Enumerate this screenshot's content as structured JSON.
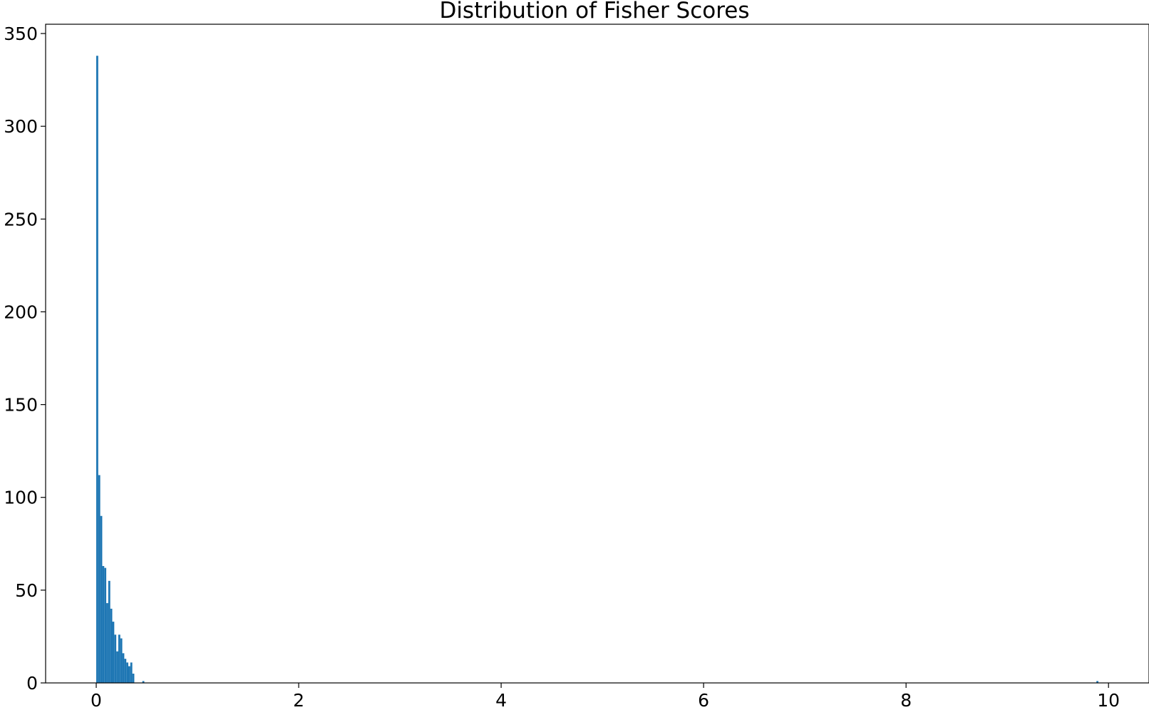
{
  "chart_data": {
    "type": "bar",
    "title": "Distribution of Fisher Scores",
    "xlabel": "",
    "ylabel": "",
    "xlim": [
      -0.5,
      10.4
    ],
    "ylim": [
      0,
      355
    ],
    "x_ticks": [
      0,
      2,
      4,
      6,
      8,
      10
    ],
    "y_ticks": [
      0,
      50,
      100,
      150,
      200,
      250,
      300,
      350
    ],
    "grid": false,
    "legend": "none",
    "bar_color": "#1f77b4",
    "bin_width": 0.0198,
    "bin_starts": [
      0.0,
      0.0198,
      0.0396,
      0.0594,
      0.0792,
      0.099,
      0.1188,
      0.1386,
      0.1584,
      0.1782,
      0.198,
      0.2178,
      0.2376,
      0.2574,
      0.2772,
      0.297,
      0.3168,
      0.3366,
      0.3564,
      0.4554,
      9.8802
    ],
    "counts": [
      338,
      112,
      90,
      63,
      62,
      43,
      55,
      40,
      33,
      26,
      17,
      26,
      24,
      16,
      13,
      11,
      9,
      11,
      5,
      1,
      1
    ]
  }
}
